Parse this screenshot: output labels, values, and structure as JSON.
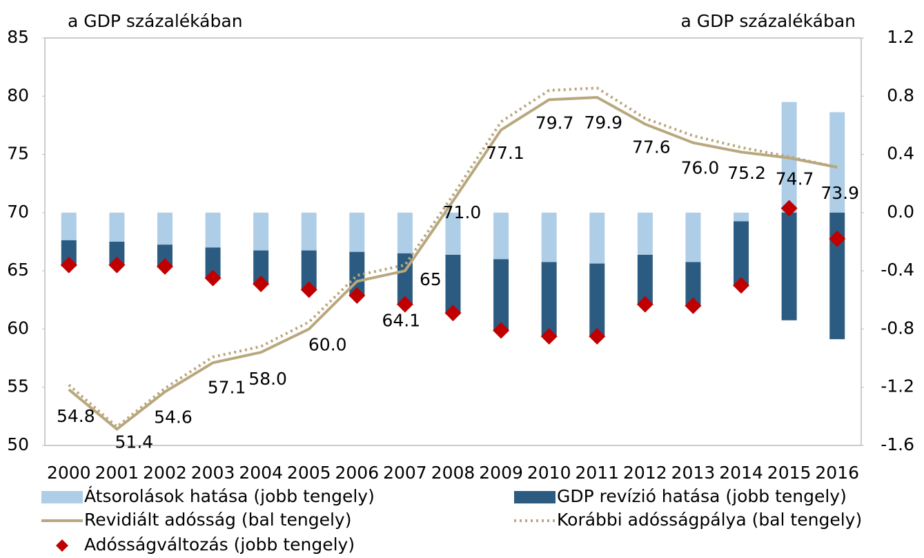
{
  "chart_data": {
    "type": "combo",
    "y_label": "a GDP százalékában",
    "y2_label": "a GDP százalékában",
    "categories": [
      "2000",
      "2001",
      "2002",
      "2003",
      "2004",
      "2005",
      "2006",
      "2007",
      "2008",
      "2009",
      "2010",
      "2011",
      "2012",
      "2013",
      "2014",
      "2015",
      "2016"
    ],
    "ylim": [
      50,
      85
    ],
    "yticks": [
      50,
      55,
      60,
      65,
      70,
      75,
      80,
      85
    ],
    "y2lim": [
      -1.6,
      1.2
    ],
    "y2ticks": [
      {
        "value": -1.6,
        "label": "-1.6"
      },
      {
        "value": -1.2,
        "label": "-1.2"
      },
      {
        "value": -0.8,
        "label": "-0.8"
      },
      {
        "value": -0.4,
        "label": "-0.4"
      },
      {
        "value": 0,
        "label": "0.0"
      },
      {
        "value": 0.4,
        "label": "0.4"
      },
      {
        "value": 0.8,
        "label": "0.8"
      },
      {
        "value": 1.2,
        "label": "1.2"
      }
    ],
    "series": [
      {
        "name": "Átsorolások hatása (jobb tengely)",
        "type": "bar",
        "axis": "y2",
        "color": "#aecde6",
        "values": [
          -0.19,
          -0.2,
          -0.22,
          -0.24,
          -0.26,
          -0.26,
          -0.27,
          -0.28,
          -0.29,
          -0.32,
          -0.34,
          -0.35,
          -0.29,
          -0.34,
          -0.06,
          0.76,
          0.69
        ]
      },
      {
        "name": "GDP revízió hatása (jobb tengely)",
        "type": "bar",
        "axis": "y2",
        "color": "#2b5b80",
        "values": [
          -0.18,
          -0.16,
          -0.15,
          -0.21,
          -0.23,
          -0.27,
          -0.3,
          -0.35,
          -0.4,
          -0.49,
          -0.51,
          -0.5,
          -0.34,
          -0.3,
          -0.44,
          -0.74,
          -0.87
        ]
      },
      {
        "name": "Revidiált adósság (bal tengely)",
        "type": "line",
        "color": "#b9a77d",
        "values": [
          54.8,
          51.4,
          54.6,
          57.1,
          58.0,
          60.0,
          64.1,
          65,
          71.0,
          77.1,
          79.7,
          79.9,
          77.6,
          76.0,
          75.2,
          74.7,
          73.9
        ],
        "value_labels": [
          "54.8",
          "51.4",
          "54.6",
          "57.1",
          "58.0",
          "60.0",
          "64.1",
          "65",
          "71.0",
          "77.1",
          "79.7",
          "79.9",
          "77.6",
          "76.0",
          "75.2",
          "74.7",
          "73.9"
        ]
      },
      {
        "name": "Korábbi adósságpálya (bal tengely)",
        "type": "dotted",
        "color": "#b9a77d",
        "values": [
          55.2,
          51.6,
          54.9,
          57.6,
          58.5,
          60.6,
          64.6,
          65.5,
          71.5,
          77.8,
          80.5,
          80.7,
          78.1,
          76.6,
          75.6,
          74.8,
          73.9
        ]
      },
      {
        "name": "Adósságváltozás (jobb tengely)",
        "type": "scatter",
        "axis": "y2",
        "color": "#c00000",
        "values": [
          -0.36,
          -0.36,
          -0.37,
          -0.45,
          -0.49,
          -0.53,
          -0.57,
          -0.63,
          -0.69,
          -0.81,
          -0.85,
          -0.85,
          -0.63,
          -0.64,
          -0.5,
          0.03,
          -0.18
        ]
      }
    ]
  }
}
